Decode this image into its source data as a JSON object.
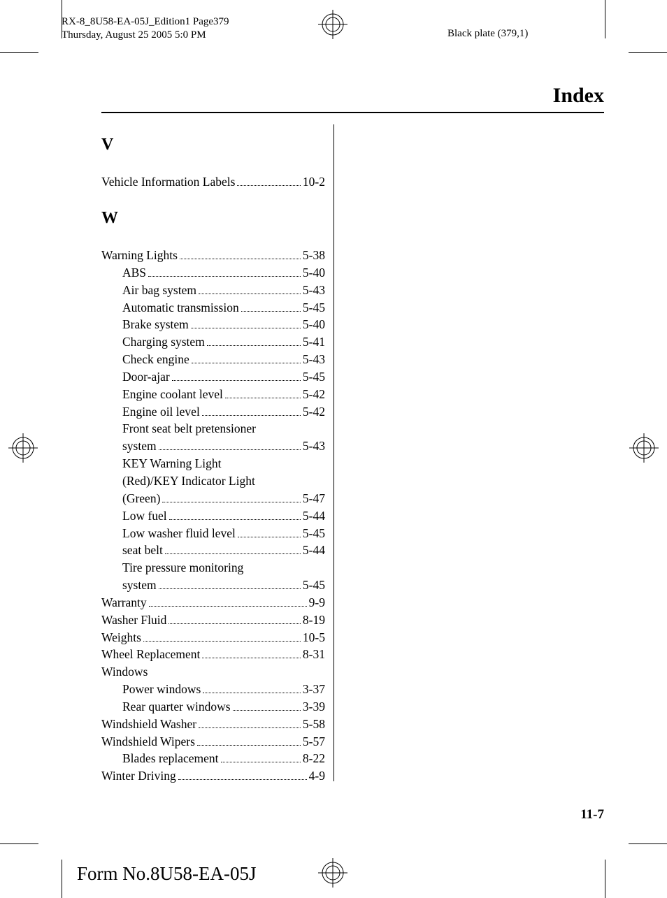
{
  "print_header_line1": "RX-8_8U58-EA-05J_Edition1 Page379",
  "print_header_line2": "Thursday, August 25 2005 5:0 PM",
  "black_plate": "Black plate (379,1)",
  "title": "Index",
  "page_number": "11-7",
  "form_number": "Form No.8U58-EA-05J",
  "sections": [
    {
      "letter": "V",
      "entries": [
        {
          "text": "Vehicle Information Labels",
          "page": "10-2",
          "indent": 0
        }
      ]
    },
    {
      "letter": "W",
      "entries": [
        {
          "text": "Warning Lights",
          "page": "5-38",
          "indent": 0
        },
        {
          "text": "ABS",
          "page": "5-40",
          "indent": 1
        },
        {
          "text": "Air bag system",
          "page": "5-43",
          "indent": 1
        },
        {
          "text": "Automatic transmission",
          "page": "5-45",
          "indent": 1
        },
        {
          "text": "Brake system",
          "page": "5-40",
          "indent": 1
        },
        {
          "text": "Charging system",
          "page": "5-41",
          "indent": 1
        },
        {
          "text": "Check engine",
          "page": "5-43",
          "indent": 1
        },
        {
          "text": "Door-ajar",
          "page": "5-45",
          "indent": 1
        },
        {
          "text": "Engine coolant level",
          "page": "5-42",
          "indent": 1
        },
        {
          "text": "Engine oil level",
          "page": "5-42",
          "indent": 1
        },
        {
          "text": "Front seat belt pretensioner",
          "page": null,
          "indent": 1
        },
        {
          "text": "system",
          "page": "5-43",
          "indent": 1
        },
        {
          "text": "KEY Warning Light",
          "page": null,
          "indent": 1
        },
        {
          "text": "(Red)/KEY Indicator Light",
          "page": null,
          "indent": 1
        },
        {
          "text": "(Green)",
          "page": "5-47",
          "indent": 1
        },
        {
          "text": "Low fuel",
          "page": "5-44",
          "indent": 1
        },
        {
          "text": "Low washer fluid level",
          "page": "5-45",
          "indent": 1
        },
        {
          "text": "seat belt",
          "page": "5-44",
          "indent": 1
        },
        {
          "text": "Tire pressure monitoring",
          "page": null,
          "indent": 1
        },
        {
          "text": "system",
          "page": "5-45",
          "indent": 1
        },
        {
          "text": "Warranty",
          "page": "9-9",
          "indent": 0
        },
        {
          "text": "Washer Fluid",
          "page": "8-19",
          "indent": 0
        },
        {
          "text": "Weights",
          "page": "10-5",
          "indent": 0
        },
        {
          "text": "Wheel Replacement",
          "page": "8-31",
          "indent": 0
        },
        {
          "text": "Windows",
          "page": null,
          "indent": 0
        },
        {
          "text": "Power windows",
          "page": "3-37",
          "indent": 1
        },
        {
          "text": "Rear quarter windows",
          "page": "3-39",
          "indent": 1
        },
        {
          "text": "Windshield Washer",
          "page": "5-58",
          "indent": 0
        },
        {
          "text": "Windshield Wipers",
          "page": "5-57",
          "indent": 0
        },
        {
          "text": "Blades replacement",
          "page": "8-22",
          "indent": 1
        },
        {
          "text": "Winter Driving",
          "page": "4-9",
          "indent": 0
        }
      ]
    }
  ]
}
